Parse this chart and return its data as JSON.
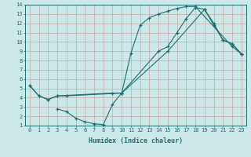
{
  "xlabel": "Humidex (Indice chaleur)",
  "xlim": [
    -0.5,
    23.5
  ],
  "ylim": [
    1,
    14
  ],
  "xticks": [
    0,
    1,
    2,
    3,
    4,
    5,
    6,
    7,
    8,
    9,
    10,
    11,
    12,
    13,
    14,
    15,
    16,
    17,
    18,
    19,
    20,
    21,
    22,
    23
  ],
  "yticks": [
    1,
    2,
    3,
    4,
    5,
    6,
    7,
    8,
    9,
    10,
    11,
    12,
    13,
    14
  ],
  "line_color": "#1a7070",
  "bg_color": "#cce8e8",
  "grid_color": "#b8d8d8",
  "line1_x": [
    0,
    1,
    2,
    3,
    4,
    10,
    11,
    12,
    13,
    14,
    15,
    16,
    17,
    18,
    22,
    23
  ],
  "line1_y": [
    5.3,
    4.2,
    3.8,
    4.2,
    4.2,
    4.5,
    8.8,
    11.8,
    12.6,
    13.0,
    13.3,
    13.6,
    13.8,
    13.8,
    9.5,
    8.7
  ],
  "line2_x": [
    0,
    1,
    2,
    3,
    9,
    10,
    14,
    15,
    16,
    17,
    18,
    19,
    20,
    21,
    22,
    23
  ],
  "line2_y": [
    5.3,
    4.2,
    3.8,
    4.2,
    4.5,
    4.5,
    9.0,
    9.5,
    11.0,
    12.5,
    13.7,
    13.5,
    12.0,
    10.2,
    9.8,
    8.7
  ],
  "line3_x": [
    3,
    4,
    5,
    6,
    7,
    8,
    9,
    10,
    15,
    19,
    20,
    21,
    22,
    23
  ],
  "line3_y": [
    2.8,
    2.5,
    1.8,
    1.4,
    1.2,
    1.1,
    3.3,
    4.5,
    9.0,
    13.5,
    11.8,
    10.2,
    9.8,
    8.7
  ]
}
